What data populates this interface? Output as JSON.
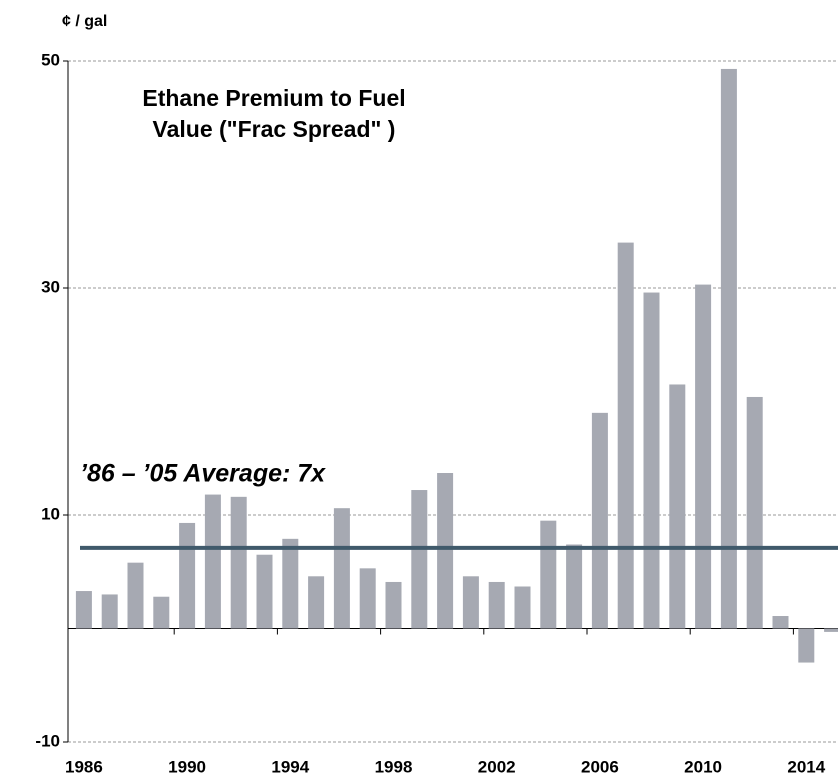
{
  "chart_data": {
    "type": "bar",
    "title_lines": [
      "Ethane Premium to Fuel",
      "Value (\"Frac Spread\" )"
    ],
    "y_axis_label": "¢ / gal",
    "annotation": "’86 – ’05 Average: 7x",
    "average": 7.1,
    "average_color": "#405a6b",
    "categories": [
      "1986",
      null,
      null,
      null,
      "1990",
      null,
      null,
      null,
      "1994",
      null,
      null,
      null,
      "1998",
      null,
      null,
      null,
      "2002",
      null,
      null,
      null,
      "2006",
      null,
      null,
      null,
      "2010",
      null,
      null,
      null,
      "2014",
      null
    ],
    "values": [
      3.3,
      3.0,
      5.8,
      2.8,
      9.3,
      11.8,
      11.6,
      6.5,
      7.9,
      4.6,
      10.6,
      5.3,
      4.1,
      12.2,
      13.7,
      4.6,
      4.1,
      3.7,
      9.5,
      7.4,
      19.0,
      34.0,
      29.6,
      21.5,
      30.3,
      49.3,
      20.4,
      1.1,
      -3.0,
      -0.3
    ],
    "color": "#a6a9b2",
    "ylim": [
      -10,
      50
    ],
    "yticks": [
      -10,
      10,
      30,
      50
    ],
    "grid": true
  }
}
